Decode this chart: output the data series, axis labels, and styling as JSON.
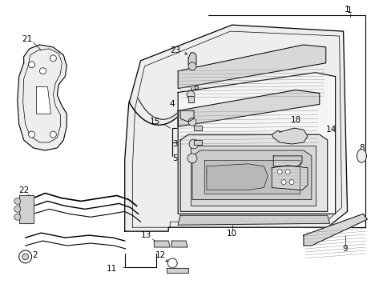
{
  "bg_color": "#ffffff",
  "line_color": "#000000",
  "fig_width": 4.89,
  "fig_height": 3.6,
  "dpi": 100,
  "hatch_color": "#888888",
  "gray_fill": "#d8d8d8",
  "light_gray": "#eeeeee"
}
